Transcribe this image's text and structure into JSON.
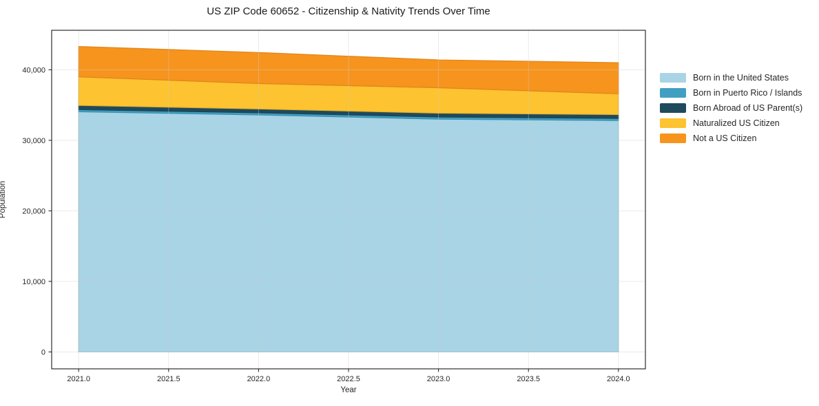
{
  "chart_data": {
    "type": "area",
    "stacked": true,
    "title": "US ZIP Code 60652 - Citizenship & Nativity Trends Over Time",
    "xlabel": "Year",
    "ylabel": "Population",
    "x": [
      2021,
      2022,
      2023,
      2024
    ],
    "series": [
      {
        "name": "Born in the United States",
        "color": "#a8d4e6",
        "values": [
          34050,
          33600,
          33000,
          32800
        ]
      },
      {
        "name": "Born in Puerto Rico / Islands",
        "color": "#41a0c2",
        "values": [
          300,
          300,
          300,
          300
        ]
      },
      {
        "name": "Born Abroad of US Parent(s)",
        "color": "#1f4a5c",
        "values": [
          600,
          550,
          550,
          550
        ]
      },
      {
        "name": "Naturalized US Citizen",
        "color": "#fdc330",
        "values": [
          4050,
          3600,
          3600,
          2950
        ]
      },
      {
        "name": "Not a US Citizen",
        "color": "#f7941e",
        "values": [
          4300,
          4400,
          3950,
          4400
        ]
      }
    ],
    "totals": [
      43300,
      42450,
      41400,
      41000
    ],
    "xticks": [
      2021.0,
      2021.5,
      2022.0,
      2022.5,
      2023.0,
      2023.5,
      2024.0
    ],
    "xtick_labels": [
      "2021.0",
      "2021.5",
      "2022.0",
      "2022.5",
      "2023.0",
      "2023.5",
      "2024.0"
    ],
    "yticks": [
      0,
      10000,
      20000,
      30000,
      40000
    ],
    "ytick_labels": [
      "0",
      "10,000",
      "20,000",
      "30,000",
      "40,000"
    ],
    "xlim": [
      2020.85,
      2024.15
    ],
    "ylim": [
      -2400,
      45600
    ],
    "grid": true,
    "legend_position": "right",
    "colors": {
      "spine": "#1a1a1a",
      "tick_label": "#262626",
      "gridline": "#cccccc",
      "background": "#ffffff"
    }
  }
}
